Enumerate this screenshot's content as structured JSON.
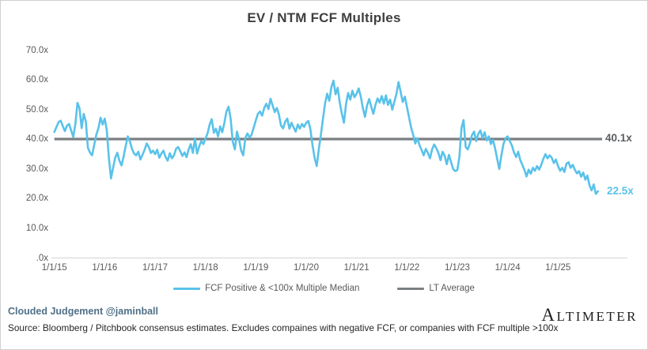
{
  "chart_data": {
    "type": "line",
    "title": "EV / NTM FCF Multiples",
    "x_axis": {
      "unit": "date",
      "tick_labels": [
        "1/1/15",
        "1/1/16",
        "1/1/17",
        "1/1/18",
        "1/1/19",
        "1/1/20",
        "1/1/21",
        "1/1/22",
        "1/1/23",
        "1/1/24",
        "1/1/25"
      ],
      "tick_years": [
        2015,
        2016,
        2017,
        2018,
        2019,
        2020,
        2021,
        2022,
        2023,
        2024,
        2025
      ],
      "range_years": [
        2015.0,
        2025.9
      ],
      "grid": false
    },
    "y_axis": {
      "tick_labels": [
        "70.0x",
        "60.0x",
        "50.0x",
        "40.0x",
        "30.0x",
        "20.0x",
        "10.0x",
        ".0x"
      ],
      "tick_values": [
        70,
        60,
        50,
        40,
        30,
        20,
        10,
        0
      ],
      "min": 0,
      "max": 70,
      "grid": false,
      "baseline_at_zero": true
    },
    "legend_position": "bottom",
    "series": [
      {
        "name": "FCF Positive & <100x Multiple Median",
        "color": "#59c2ea",
        "end_label": "22.5x",
        "x_start": 2015,
        "points_per_year": 24,
        "x_note": "x value of point i = x_start + i / points_per_year (weekly median, 1/1/15 through late 2025)",
        "values": [
          42.5,
          44.2,
          45.8,
          46.3,
          44.5,
          42.8,
          44.6,
          45.2,
          43.0,
          40.8,
          45.0,
          52.3,
          50.5,
          43.8,
          48.6,
          46.0,
          37.2,
          35.5,
          34.6,
          38.2,
          41.5,
          43.8,
          47.3,
          45.0,
          47.0,
          43.0,
          33.5,
          26.8,
          30.5,
          33.8,
          35.5,
          32.8,
          31.2,
          34.2,
          37.8,
          41.0,
          39.3,
          36.8,
          35.2,
          34.6,
          35.8,
          33.2,
          34.8,
          36.5,
          38.6,
          37.4,
          35.4,
          36.2,
          35.0,
          36.5,
          33.8,
          35.2,
          36.2,
          34.0,
          32.8,
          35.3,
          33.6,
          34.6,
          36.8,
          37.4,
          36.0,
          34.4,
          35.6,
          34.0,
          36.6,
          38.4,
          35.4,
          40.3,
          35.2,
          37.6,
          39.4,
          38.4,
          40.2,
          42.0,
          45.0,
          46.8,
          42.2,
          43.6,
          41.0,
          44.4,
          42.4,
          45.6,
          49.4,
          51.0,
          47.0,
          39.2,
          36.6,
          42.6,
          40.0,
          36.2,
          34.6,
          40.4,
          42.0,
          40.6,
          41.6,
          44.0,
          46.4,
          48.6,
          49.4,
          48.0,
          50.6,
          52.0,
          50.2,
          53.7,
          51.4,
          49.2,
          50.6,
          48.4,
          44.6,
          43.7,
          46.0,
          47.0,
          43.6,
          45.6,
          44.0,
          42.6,
          45.0,
          43.6,
          45.2,
          44.2,
          45.6,
          46.2,
          43.4,
          38.0,
          33.8,
          31.0,
          36.6,
          41.6,
          47.0,
          52.2,
          55.4,
          53.0,
          57.6,
          59.8,
          55.2,
          57.4,
          52.4,
          48.6,
          45.6,
          52.0,
          55.6,
          53.4,
          56.4,
          54.2,
          55.4,
          57.2,
          54.4,
          50.6,
          47.6,
          51.4,
          53.6,
          51.0,
          48.6,
          51.6,
          53.8,
          52.4,
          54.6,
          52.0,
          54.8,
          51.6,
          53.4,
          50.0,
          52.6,
          55.4,
          59.3,
          56.0,
          52.6,
          54.4,
          51.0,
          47.4,
          44.0,
          41.4,
          38.6,
          40.4,
          38.0,
          36.4,
          34.6,
          36.8,
          35.4,
          33.6,
          36.6,
          38.3,
          37.0,
          35.4,
          33.0,
          35.8,
          34.4,
          31.6,
          34.8,
          32.4,
          30.0,
          29.3,
          29.6,
          34.0,
          43.9,
          46.5,
          37.4,
          36.6,
          38.6,
          41.4,
          42.6,
          39.4,
          41.8,
          43.0,
          40.4,
          42.4,
          39.6,
          41.0,
          38.4,
          39.8,
          37.0,
          33.4,
          30.0,
          34.6,
          38.4,
          40.4,
          41.0,
          39.4,
          38.0,
          35.6,
          34.0,
          35.8,
          33.0,
          31.4,
          29.6,
          27.5,
          29.8,
          28.4,
          30.4,
          29.4,
          31.0,
          29.8,
          31.4,
          33.4,
          35.0,
          33.6,
          34.6,
          33.8,
          32.0,
          33.2,
          31.0,
          29.4,
          30.4,
          29.0,
          31.8,
          32.3,
          30.4,
          31.4,
          29.8,
          28.5,
          29.3,
          27.4,
          28.8,
          26.4,
          27.8,
          24.5,
          22.8,
          24.8,
          21.6,
          22.5
        ],
        "last_value": 22.5
      },
      {
        "name": "LT Average",
        "color": "#7b7f82",
        "type": "constant-line",
        "value": 40.1,
        "end_label": "40.1x"
      }
    ]
  },
  "footer": {
    "credit": "Clouded Judgement @jaminball",
    "source": "Source: Bloomberg / Pitchbook consensus estimates. Excludes compaines with negative FCF, or companies with FCF multiple >100x",
    "logo": "ALTIMETER"
  },
  "colors": {
    "series_blue": "#59c2ea",
    "lt_average_gray": "#7b7f82",
    "axis_text": "#595959",
    "title_text": "#3f3f3f",
    "credit_blue": "#4f7087",
    "baseline_gray": "#d9d9d9",
    "frame_border": "#cfcfcf"
  }
}
